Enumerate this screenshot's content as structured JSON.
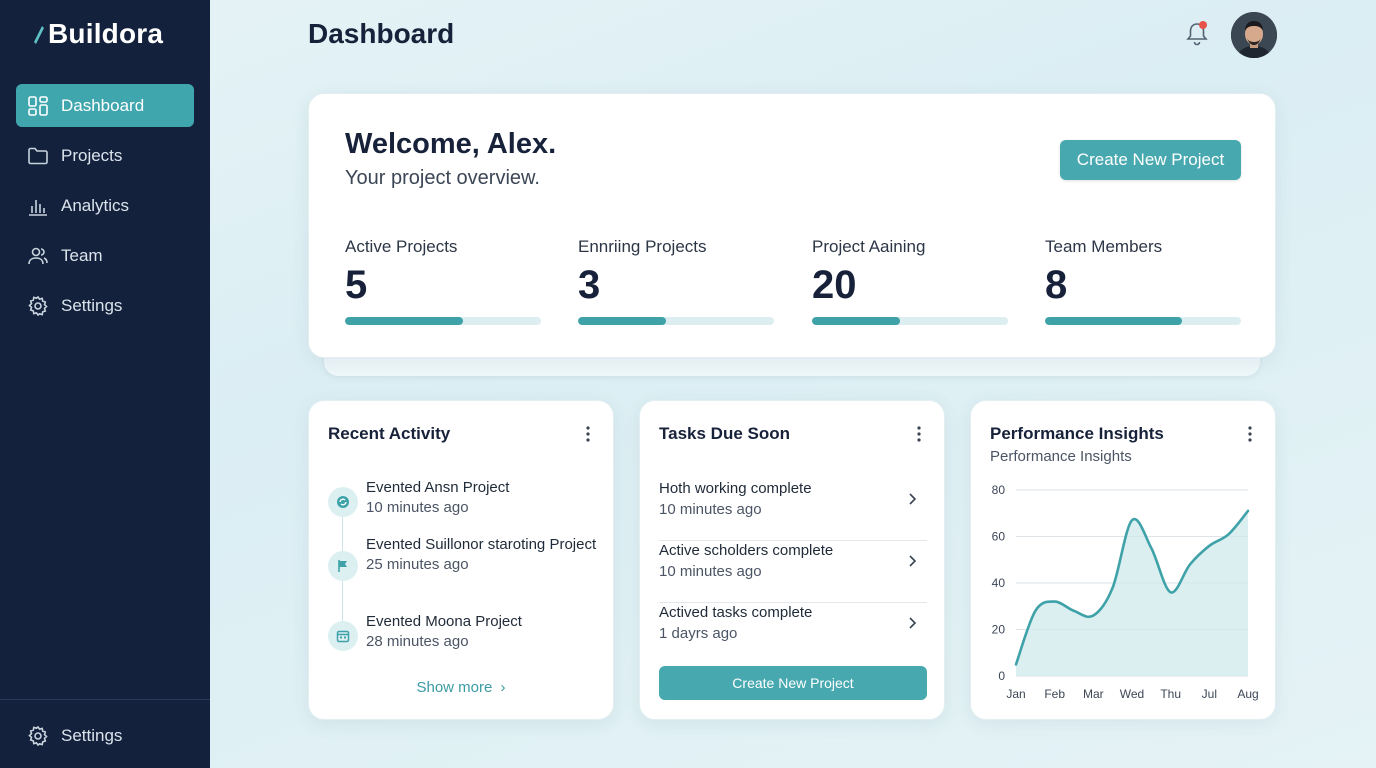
{
  "app": {
    "brand": "Buildora",
    "page_title": "Dashboard"
  },
  "sidebar": {
    "items": [
      {
        "label": "Dashboard",
        "icon": "grid-icon",
        "active": true
      },
      {
        "label": "Projects",
        "icon": "folder-icon",
        "active": false
      },
      {
        "label": "Analytics",
        "icon": "bar-chart-icon",
        "active": false
      },
      {
        "label": "Team",
        "icon": "users-icon",
        "active": false
      },
      {
        "label": "Settings",
        "icon": "gear-icon",
        "active": false
      }
    ],
    "bottom": {
      "label": "Settings",
      "icon": "gear-icon"
    }
  },
  "header": {
    "notification_icon": "bell-icon",
    "has_unread": true
  },
  "welcome": {
    "title": "Welcome, Alex.",
    "subtitle": "Your project overview.",
    "cta_label": "Create New Project",
    "stats": [
      {
        "label": "Active Projects",
        "value": "5",
        "progress": 0.6
      },
      {
        "label": "Ennriing Projects",
        "value": "3",
        "progress": 0.45
      },
      {
        "label": "Project Aaining",
        "value": "20",
        "progress": 0.45
      },
      {
        "label": "Team Members",
        "value": "8",
        "progress": 0.7
      }
    ]
  },
  "activity": {
    "title": "Recent Activity",
    "items": [
      {
        "title": "Evented Ansn Project",
        "time": "10 minutes ago",
        "icon": "refresh-icon"
      },
      {
        "title": "Evented Suillonor staroting Project",
        "time": "25 minutes ago",
        "icon": "flag-icon"
      },
      {
        "title": "Evented Moona Project",
        "time": "28 minutes ago",
        "icon": "calendar-icon"
      }
    ],
    "show_more": "Show more"
  },
  "tasks": {
    "title": "Tasks Due Soon",
    "items": [
      {
        "title": "Hoth working complete",
        "time": "10 minutes ago"
      },
      {
        "title": "Active scholders complete",
        "time": "10 minutes ago"
      },
      {
        "title": "Actived tasks complete",
        "time": "1 dayrs ago"
      }
    ],
    "button_label": "Create New Project"
  },
  "performance": {
    "title": "Performance Insights",
    "subtitle": "Performance Insights"
  },
  "chart_data": {
    "type": "area",
    "title": "Performance Insights",
    "categories": [
      "Jan",
      "Feb",
      "Mar",
      "Wed",
      "Thu",
      "Jul",
      "Aug"
    ],
    "x": [
      0,
      0.5,
      1,
      1.5,
      2,
      2.5,
      3,
      3.5,
      4,
      4.5,
      5,
      5.5,
      6
    ],
    "values": [
      5,
      28,
      32,
      28,
      26,
      38,
      67,
      55,
      36,
      48,
      56,
      61,
      71
    ],
    "ylim": [
      0,
      80
    ],
    "yticks": [
      0,
      20,
      40,
      60,
      80
    ],
    "grid": true,
    "colors": {
      "line": "#3fa2a9",
      "fill": "#cfeaec"
    }
  },
  "theme": {
    "accent": "#47a9af",
    "sidebar_bg": "#13213c",
    "notification_dot": "#e5534b"
  }
}
